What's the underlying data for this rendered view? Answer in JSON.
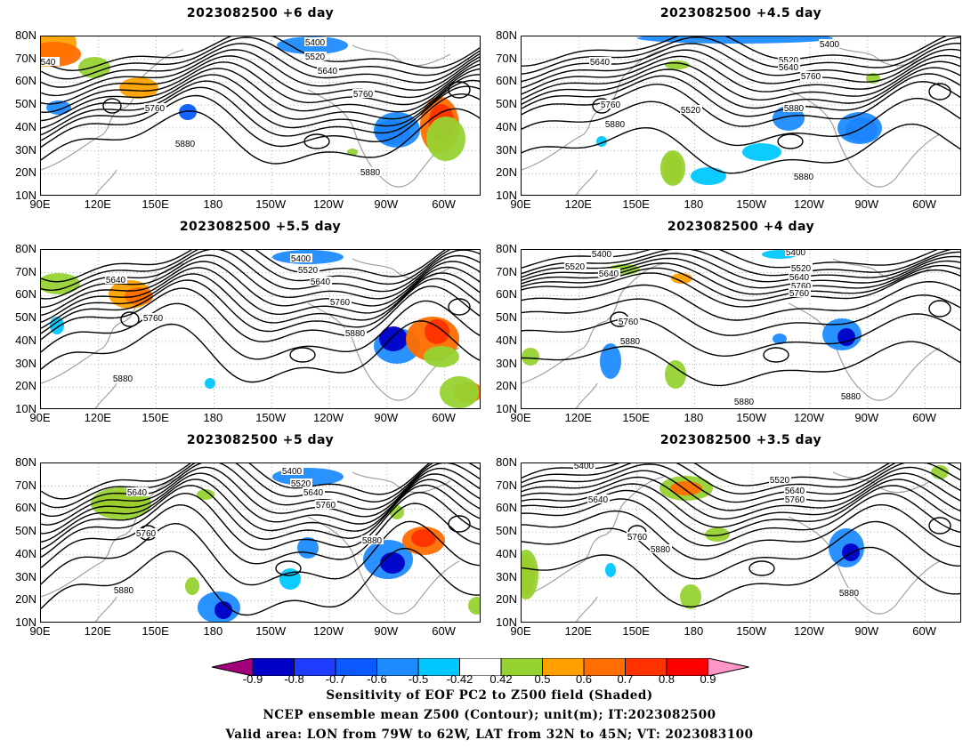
{
  "panels": [
    {
      "title": "2023082500  +6 day"
    },
    {
      "title": "2023082500  +4.5 day"
    },
    {
      "title": "2023082500  +5.5 day"
    },
    {
      "title": "2023082500  +4 day"
    },
    {
      "title": "2023082500  +5 day"
    },
    {
      "title": "2023082500  +3.5 day"
    }
  ],
  "axes": {
    "lat_labels": [
      "80N",
      "70N",
      "60N",
      "50N",
      "40N",
      "30N",
      "20N",
      "10N"
    ],
    "lon_labels": [
      "90E",
      "120E",
      "150E",
      "180",
      "150W",
      "120W",
      "90W",
      "60W"
    ]
  },
  "contour_labels": {
    "p0": [
      "5400",
      "5520",
      "5640",
      "5760",
      "5880",
      "5880",
      "5760",
      "540"
    ],
    "p1": [
      "5400",
      "5520",
      "5640",
      "5760",
      "5640",
      "5760",
      "5520",
      "5880",
      "5880",
      "5880"
    ],
    "p2": [
      "5400",
      "5520",
      "5640",
      "5760",
      "5640",
      "5760",
      "5880",
      "5880"
    ],
    "p3": [
      "5400",
      "5520",
      "5640",
      "5760",
      "5400",
      "5520",
      "5640",
      "5760",
      "5760",
      "5880",
      "5880",
      "5880"
    ],
    "p4": [
      "5400",
      "5520",
      "5640",
      "5760",
      "5640",
      "5760",
      "5880",
      "5880",
      "5880"
    ],
    "p5": [
      "5400",
      "5520",
      "5640",
      "5760",
      "5640",
      "5760",
      "5880",
      "5880"
    ]
  },
  "colorbar": {
    "labels": [
      "-0.9",
      "-0.8",
      "-0.7",
      "-0.6",
      "-0.5",
      "-0.42",
      "0.42",
      "0.5",
      "0.6",
      "0.7",
      "0.8",
      "0.9"
    ],
    "colors": [
      "#a0007a",
      "#0000c8",
      "#1e3cff",
      "#0a5aff",
      "#1e8cff",
      "#00c8ff",
      "#ffffff",
      "#96d232",
      "#ffa000",
      "#ff6e00",
      "#ff3200",
      "#ff0000",
      "#ff96c8"
    ]
  },
  "caption": {
    "line1": "Sensitivity of EOF PC2 to Z500 field (Shaded)",
    "line2": "NCEP ensemble mean Z500 (Contour); unit(m); IT:2023082500",
    "line3": "Valid area: LON from 79W to 62W, LAT from 32N to 45N; VT: 2023083100"
  }
}
